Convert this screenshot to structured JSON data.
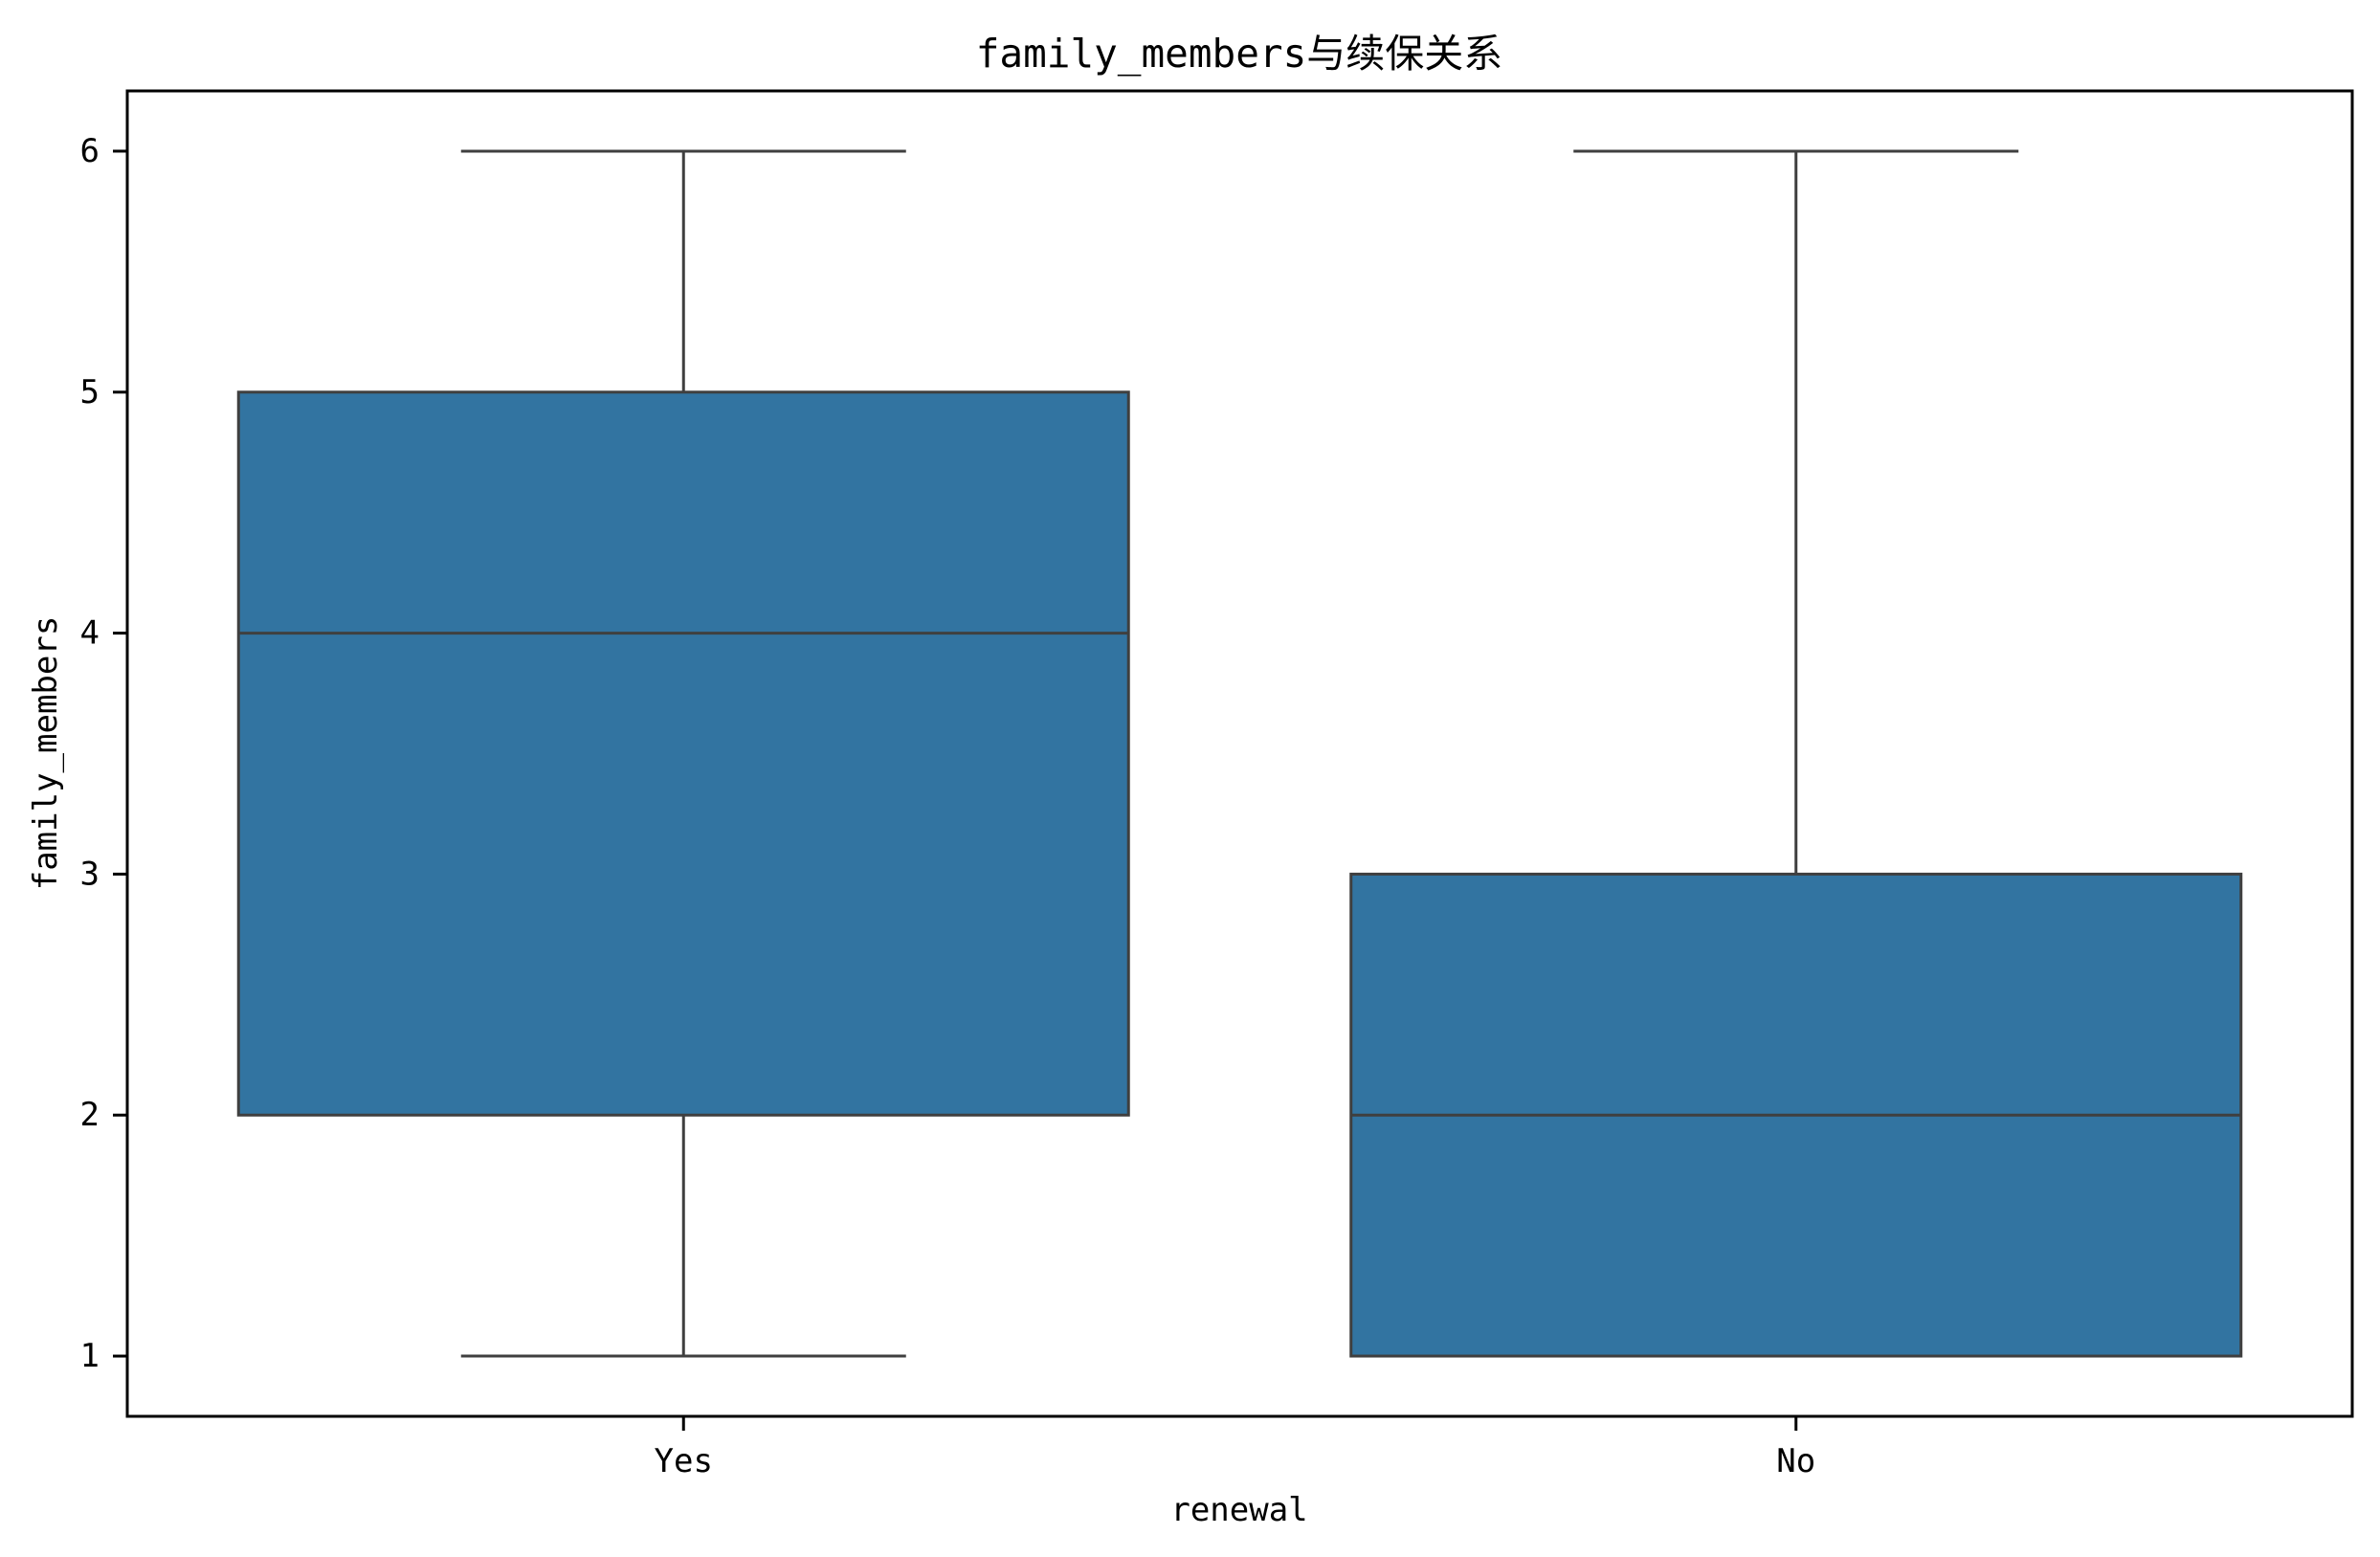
{
  "chart_data": {
    "type": "box",
    "title": "family_members与续保关系",
    "xlabel": "renewal",
    "ylabel": "family_members",
    "categories": [
      "Yes",
      "No"
    ],
    "boxes": [
      {
        "category": "Yes",
        "whisker_low": 1,
        "q1": 2,
        "median": 4,
        "q3": 5,
        "whisker_high": 6
      },
      {
        "category": "No",
        "whisker_low": 1,
        "q1": 1,
        "median": 2,
        "q3": 3,
        "whisker_high": 6
      }
    ],
    "ylim": [
      0.75,
      6.25
    ],
    "yticks": [
      1,
      2,
      3,
      4,
      5,
      6
    ],
    "grid": false,
    "legend": "none",
    "colors": {
      "box_fill": "#3274a1",
      "box_line": "#3f3f3f",
      "spine": "#000000"
    }
  }
}
